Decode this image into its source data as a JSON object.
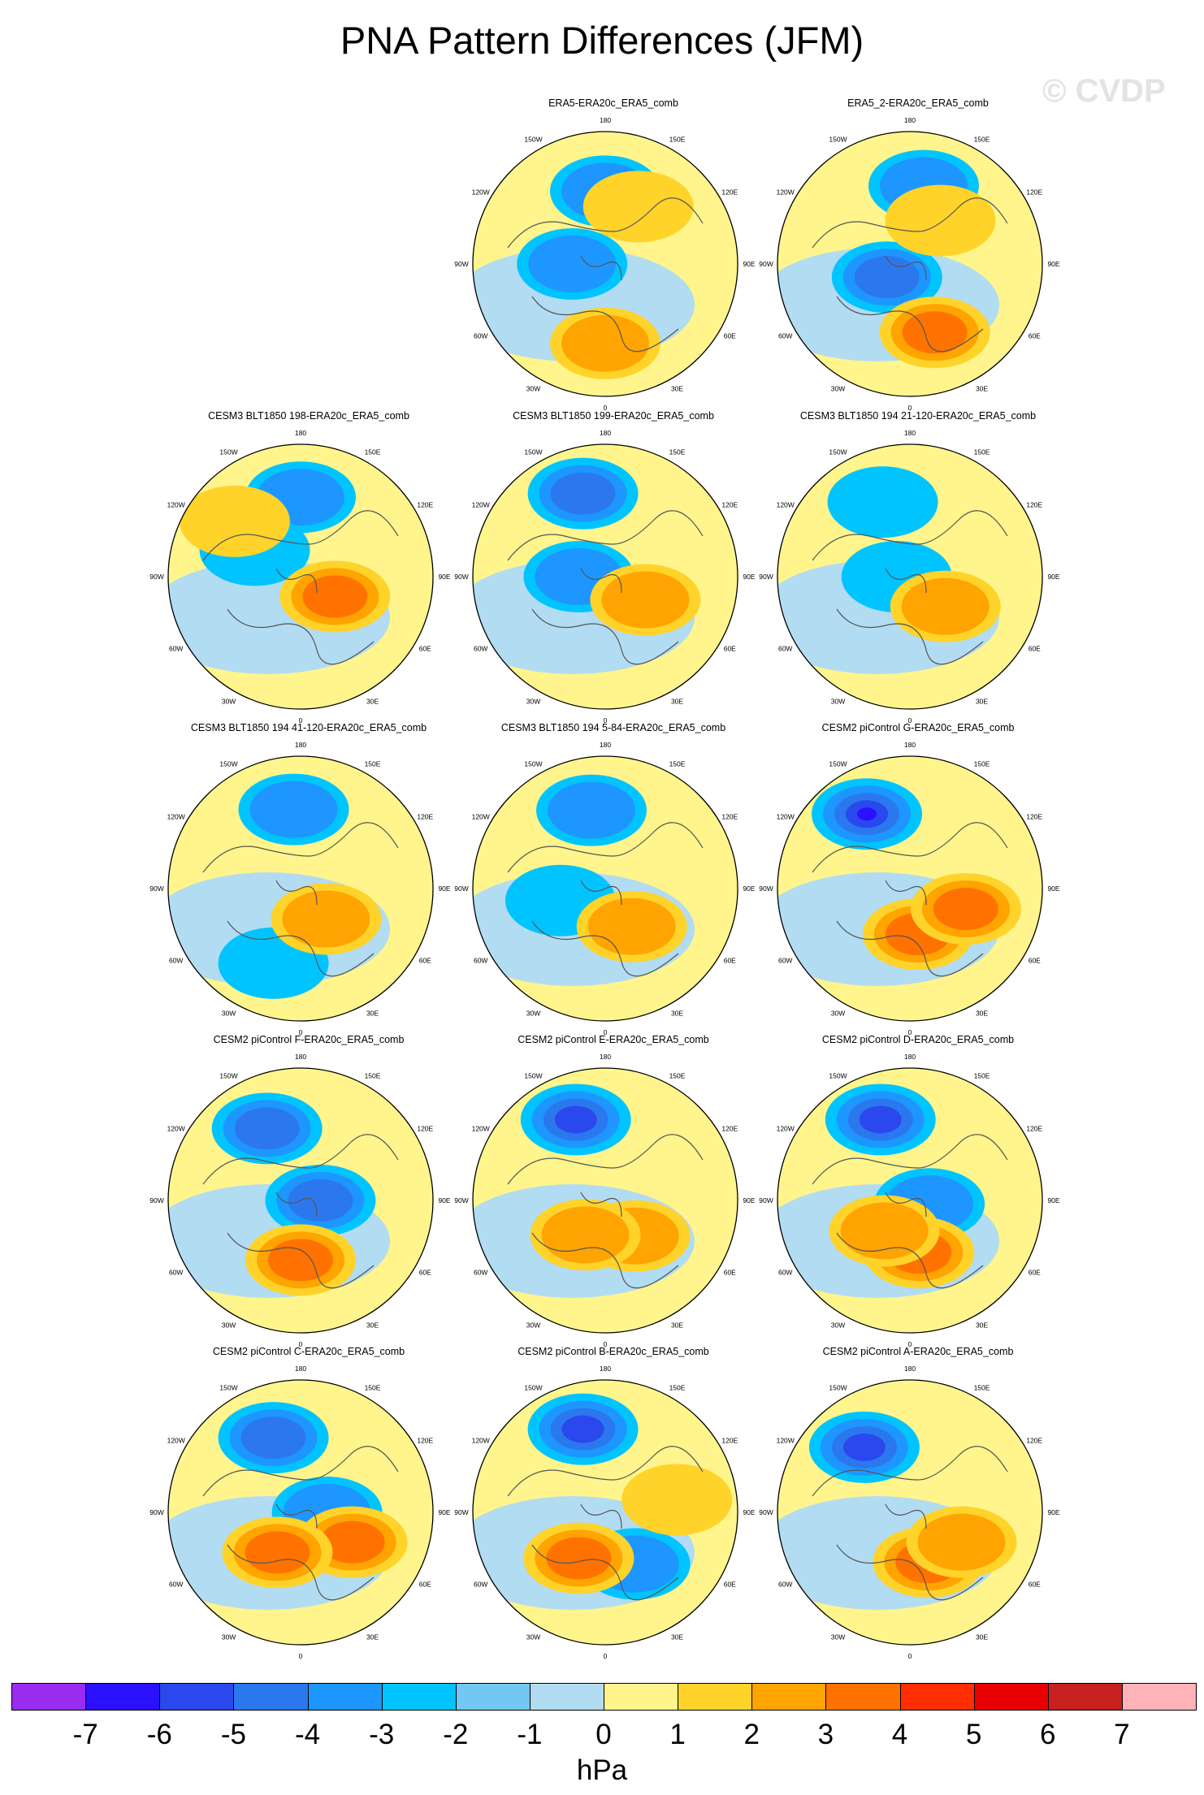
{
  "title": "PNA Pattern Differences (JFM)",
  "watermark": "© CVDP",
  "map": {
    "projection": "north-polar-stereographic",
    "longitude_labels": [
      "180",
      "150E",
      "120E",
      "90E",
      "60E",
      "30E",
      "0",
      "30W",
      "60W",
      "90W",
      "120W",
      "150W"
    ]
  },
  "panels": [
    {
      "title": "ERA5-ERA20c_ERA5_comb",
      "row": 0,
      "col": 1,
      "lows": [
        [
          180,
          0.55,
          -2
        ],
        [
          270,
          0.25,
          -2
        ]
      ],
      "highs": [
        [
          0,
          0.6,
          2
        ],
        [
          150,
          0.5,
          1.5
        ]
      ]
    },
    {
      "title": "ERA5_2-ERA20c_ERA5_comb",
      "row": 0,
      "col": 2,
      "lows": [
        [
          170,
          0.6,
          -2
        ],
        [
          300,
          0.2,
          -3
        ]
      ],
      "highs": [
        [
          20,
          0.55,
          3
        ],
        [
          145,
          0.4,
          1
        ]
      ]
    },
    {
      "title": "CESM3 BLT1850 198-ERA20c_ERA5_comb",
      "row": 1,
      "col": 0,
      "lows": [
        [
          180,
          0.6,
          -2
        ],
        [
          240,
          0.4,
          -1
        ]
      ],
      "highs": [
        [
          60,
          0.3,
          3
        ],
        [
          230,
          0.65,
          1.5
        ]
      ]
    },
    {
      "title": "CESM3 BLT1850 199-ERA20c_ERA5_comb",
      "row": 1,
      "col": 1,
      "lows": [
        [
          195,
          0.65,
          -3
        ],
        [
          270,
          0.2,
          -2
        ]
      ],
      "highs": [
        [
          60,
          0.35,
          2
        ]
      ]
    },
    {
      "title": "CESM3 BLT1850 194 21-120-ERA20c_ERA5_comb",
      "row": 1,
      "col": 2,
      "lows": [
        [
          200,
          0.6,
          -1
        ],
        [
          270,
          0.1,
          -1
        ]
      ],
      "highs": [
        [
          50,
          0.35,
          2
        ]
      ]
    },
    {
      "title": "CESM3 BLT1850 194 41-120-ERA20c_ERA5_comb",
      "row": 2,
      "col": 0,
      "lows": [
        [
          185,
          0.6,
          -2
        ],
        [
          340,
          0.6,
          -1
        ]
      ],
      "highs": [
        [
          40,
          0.3,
          2
        ]
      ]
    },
    {
      "title": "CESM3 BLT1850 194 5-84-ERA20c_ERA5_comb",
      "row": 2,
      "col": 1,
      "lows": [
        [
          190,
          0.6,
          -2
        ],
        [
          285,
          0.35,
          -1
        ]
      ],
      "highs": [
        [
          35,
          0.35,
          2
        ]
      ]
    },
    {
      "title": "CESM2 piControl G-ERA20c_ERA5_comb",
      "row": 2,
      "col": 2,
      "lows": [
        [
          210,
          0.65,
          -5
        ]
      ],
      "highs": [
        [
          10,
          0.35,
          3
        ],
        [
          70,
          0.45,
          3
        ]
      ]
    },
    {
      "title": "CESM2 piControl F-ERA20c_ERA5_comb",
      "row": 3,
      "col": 0,
      "lows": [
        [
          205,
          0.6,
          -3
        ],
        [
          90,
          0.15,
          -3
        ]
      ],
      "highs": [
        [
          0,
          0.45,
          3
        ]
      ]
    },
    {
      "title": "CESM2 piControl E-ERA20c_ERA5_comb",
      "row": 3,
      "col": 1,
      "lows": [
        [
          200,
          0.65,
          -4
        ]
      ],
      "highs": [
        [
          40,
          0.35,
          2
        ],
        [
          330,
          0.3,
          2
        ]
      ]
    },
    {
      "title": "CESM2 piControl D-ERA20c_ERA5_comb",
      "row": 3,
      "col": 2,
      "lows": [
        [
          200,
          0.65,
          -4
        ],
        [
          80,
          0.15,
          -2
        ]
      ],
      "highs": [
        [
          10,
          0.4,
          3
        ],
        [
          320,
          0.3,
          2
        ]
      ]
    },
    {
      "title": "CESM2 piControl C-ERA20c_ERA5_comb",
      "row": 4,
      "col": 0,
      "lows": [
        [
          200,
          0.6,
          -3
        ],
        [
          90,
          0.2,
          -2
        ]
      ],
      "highs": [
        [
          60,
          0.45,
          3
        ],
        [
          330,
          0.35,
          3
        ]
      ]
    },
    {
      "title": "CESM2 piControl B-ERA20c_ERA5_comb",
      "row": 4,
      "col": 1,
      "lows": [
        [
          195,
          0.65,
          -4
        ],
        [
          30,
          0.45,
          -2
        ]
      ],
      "highs": [
        [
          330,
          0.4,
          3
        ],
        [
          100,
          0.55,
          1
        ]
      ]
    },
    {
      "title": "CESM2 piControl A-ERA20c_ERA5_comb",
      "row": 4,
      "col": 2,
      "lows": [
        [
          215,
          0.6,
          -4
        ]
      ],
      "highs": [
        [
          20,
          0.4,
          3
        ],
        [
          60,
          0.45,
          2
        ]
      ]
    }
  ],
  "colorbar": {
    "units": "hPa",
    "colors": [
      "#9a2cf0",
      "#2b10ff",
      "#2a48ee",
      "#2b78ee",
      "#1e96ff",
      "#00c4ff",
      "#72c8f2",
      "#b2dcf2",
      "#fff58c",
      "#ffd32a",
      "#ffa400",
      "#ff7200",
      "#ff2d00",
      "#e80000",
      "#c8201f",
      "#ffb2b8"
    ],
    "ticks": [
      "-7",
      "-6",
      "-5",
      "-4",
      "-3",
      "-2",
      "-1",
      "0",
      "1",
      "2",
      "3",
      "4",
      "5",
      "6",
      "7"
    ]
  }
}
